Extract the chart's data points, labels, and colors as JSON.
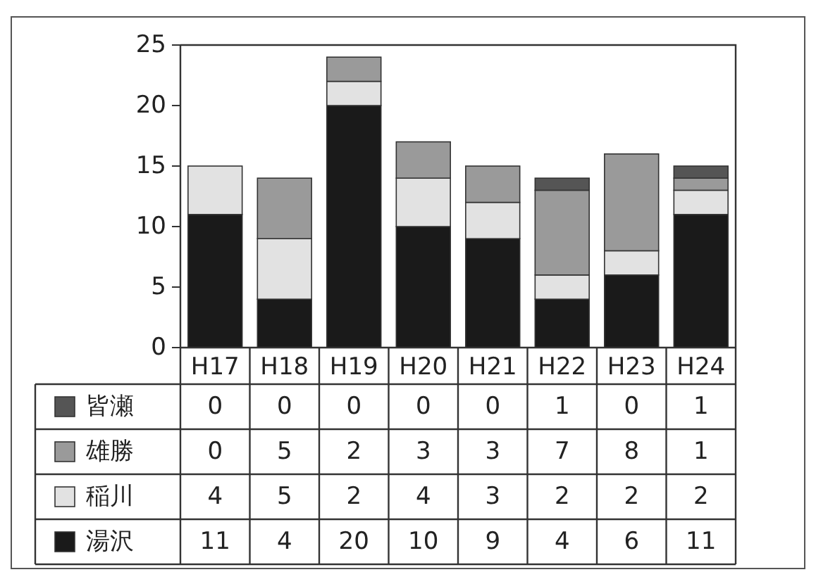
{
  "chart_data": {
    "type": "bar",
    "stacked": true,
    "categories": [
      "H17",
      "H18",
      "H19",
      "H20",
      "H21",
      "H22",
      "H23",
      "H24"
    ],
    "series": [
      {
        "name": "湯沢",
        "color": "#1a1a1a",
        "values": [
          11,
          4,
          20,
          10,
          9,
          4,
          6,
          11
        ]
      },
      {
        "name": "稲川",
        "color": "#e2e2e2",
        "values": [
          4,
          5,
          2,
          4,
          3,
          2,
          2,
          2
        ]
      },
      {
        "name": "雄勝",
        "color": "#9a9a9a",
        "values": [
          0,
          5,
          2,
          3,
          3,
          7,
          8,
          1
        ]
      },
      {
        "name": "皆瀬",
        "color": "#555555",
        "values": [
          0,
          0,
          0,
          0,
          0,
          1,
          0,
          1
        ]
      }
    ],
    "ylim": [
      0,
      25
    ],
    "yticks": [
      0,
      5,
      10,
      15,
      20,
      25
    ],
    "data_labels": true,
    "legend": "bottom"
  }
}
